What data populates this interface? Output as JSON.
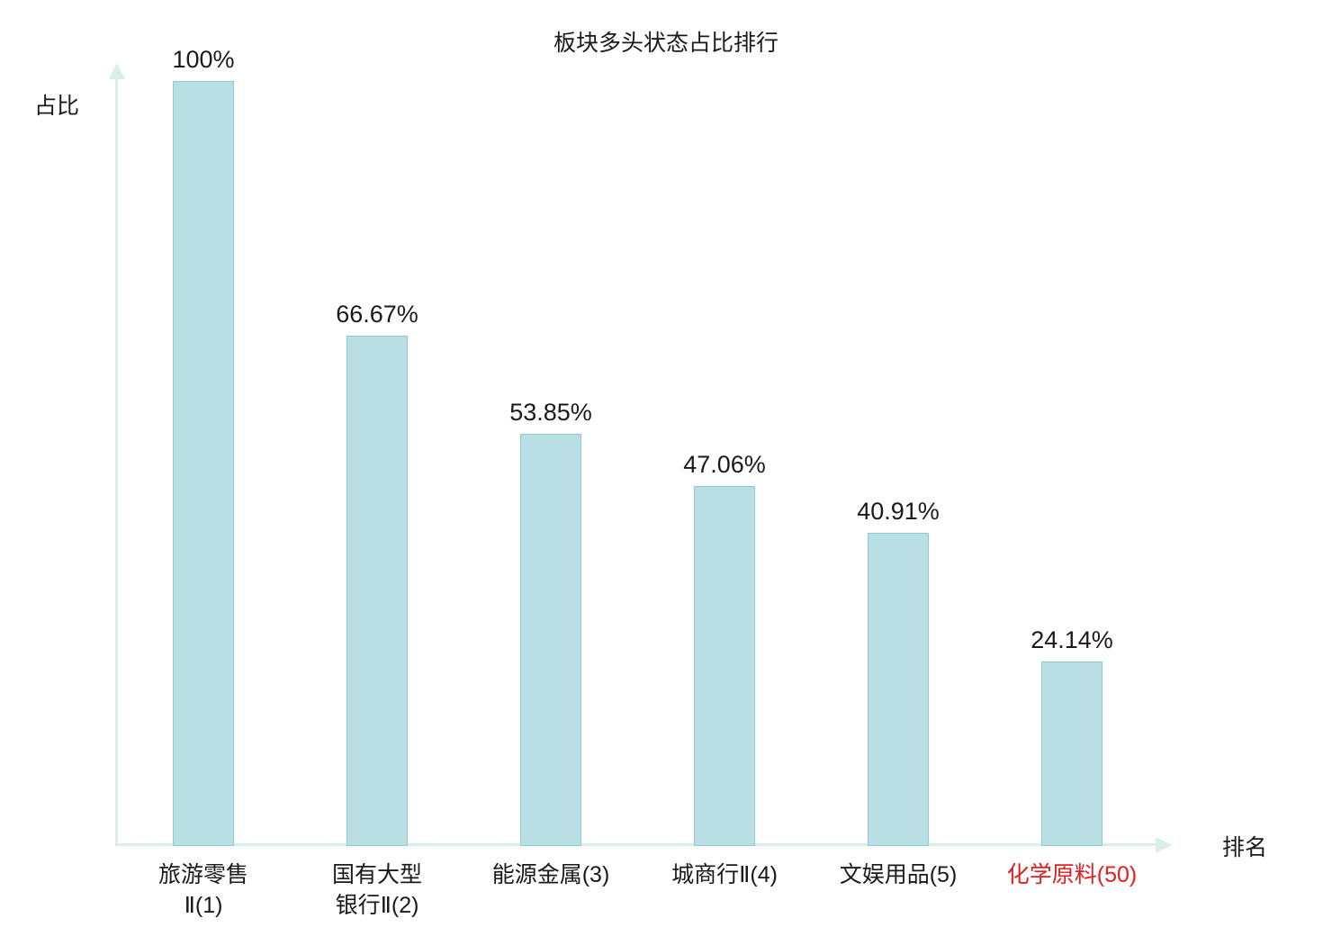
{
  "title": "板块多头状态占比排行",
  "axes": {
    "y_label": "占比",
    "x_label": "排名"
  },
  "colors": {
    "bar_fill": "#b9dee3",
    "bar_border": "#8ecbd2",
    "axis": "#d9efe9",
    "text": "#1a1a1a",
    "highlight": "#e02020"
  },
  "chart_data": {
    "type": "bar",
    "title": "板块多头状态占比排行",
    "xlabel": "排名",
    "ylabel": "占比",
    "categories": [
      "旅游零售Ⅱ(1)",
      "国有大型银行Ⅱ(2)",
      "能源金属(3)",
      "城商行Ⅱ(4)",
      "文娱用品(5)",
      "化学原料(50)"
    ],
    "category_lines": [
      [
        "旅游零售",
        "Ⅱ(1)"
      ],
      [
        "国有大型",
        "银行Ⅱ(2)"
      ],
      [
        "能源金属(3)"
      ],
      [
        "城商行Ⅱ(4)"
      ],
      [
        "文娱用品(5)"
      ],
      [
        "化学原料(50)"
      ]
    ],
    "values": [
      100,
      66.67,
      53.85,
      47.06,
      40.91,
      24.14
    ],
    "value_labels": [
      "100%",
      "66.67%",
      "53.85%",
      "47.06%",
      "40.91%",
      "24.14%"
    ],
    "highlight_index": 5,
    "ylim": [
      0,
      100
    ],
    "grid": false,
    "legend": null
  }
}
